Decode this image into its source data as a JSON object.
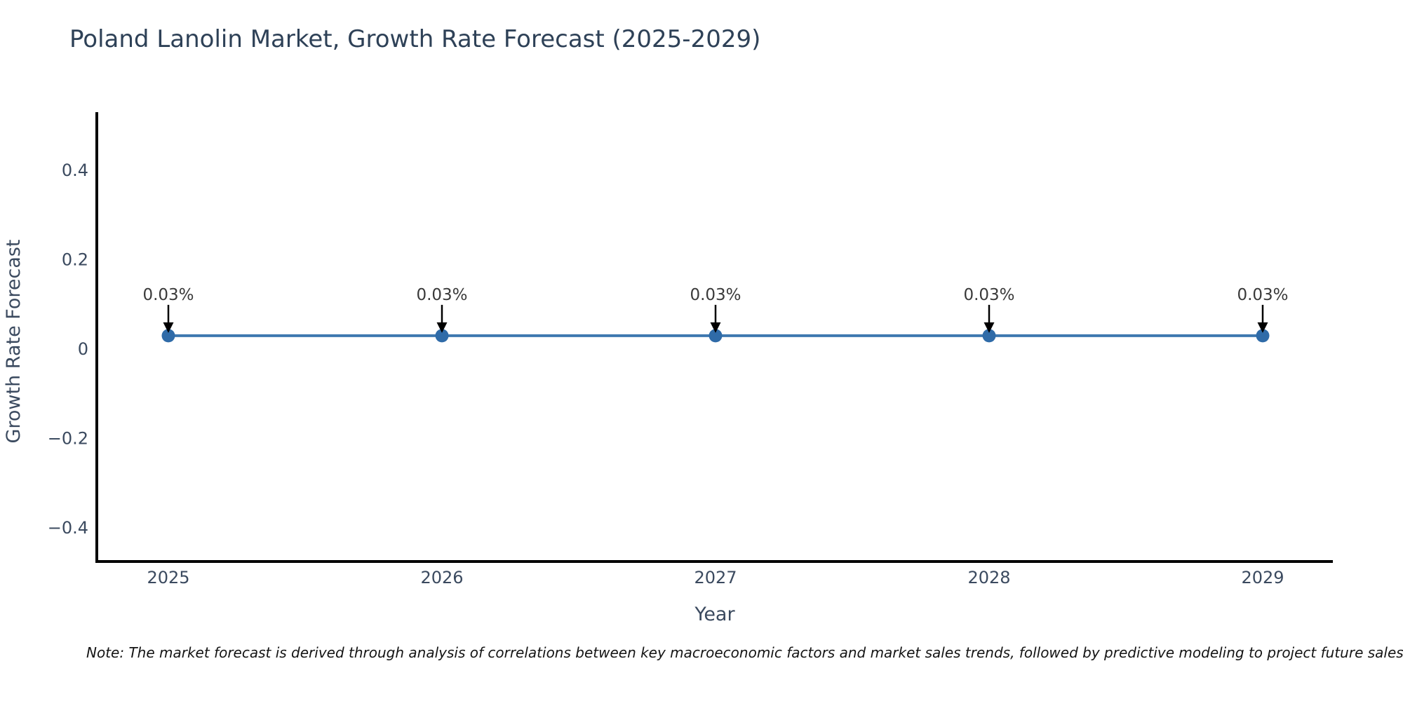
{
  "title": "Poland Lanolin Market, Growth Rate Forecast (2025-2029)",
  "note": "Note: The market forecast is derived through analysis of correlations between key macroeconomic factors and market sales trends, followed by predictive modeling to project future sales.",
  "chart_data": {
    "type": "line",
    "title": "Poland Lanolin Market, Growth Rate Forecast (2025-2029)",
    "xlabel": "Year",
    "ylabel": "Growth Rate Forecast",
    "categories": [
      "2025",
      "2026",
      "2027",
      "2028",
      "2029"
    ],
    "series": [
      {
        "name": "Growth Rate Forecast",
        "values": [
          0.03,
          0.03,
          0.03,
          0.03,
          0.03
        ],
        "point_labels": [
          "0.03%",
          "0.03%",
          "0.03%",
          "0.03%",
          "0.03%"
        ]
      }
    ],
    "y_ticks": [
      {
        "label": "0.4",
        "value": 0.4
      },
      {
        "label": "0.2",
        "value": 0.2
      },
      {
        "label": "0",
        "value": 0
      },
      {
        "label": "−0.2",
        "value": -0.2
      },
      {
        "label": "−0.4",
        "value": -0.4
      }
    ],
    "ylim": [
      -0.475,
      0.53
    ],
    "grid": false,
    "legend_position": "none",
    "colors": {
      "line": "#3e78b0",
      "marker": "#2f6ba8",
      "annotation_text": "#3a3a3a",
      "annotation_arrow": "#000000",
      "axis_spine": "#000000",
      "tick_label": "#3b4a5f",
      "axis_label": "#3b4a5f",
      "title": "#2e4157",
      "note": "#141414",
      "background": "#ffffff"
    }
  }
}
